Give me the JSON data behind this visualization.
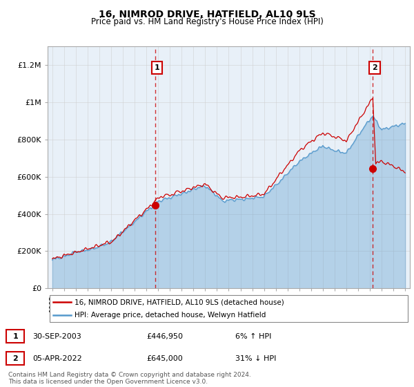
{
  "title": "16, NIMROD DRIVE, HATFIELD, AL10 9LS",
  "subtitle": "Price paid vs. HM Land Registry's House Price Index (HPI)",
  "ylabel_ticks": [
    "£0",
    "£200K",
    "£400K",
    "£600K",
    "£800K",
    "£1M",
    "£1.2M"
  ],
  "ylim": [
    0,
    1300000
  ],
  "xlim_start": 1994.6,
  "xlim_end": 2025.4,
  "price_color": "#cc0000",
  "hpi_color": "#5599cc",
  "hpi_fill_color": "#ddeeff",
  "marker1_date": 2003.75,
  "marker1_value": 446950,
  "marker1_label": "1",
  "marker2_date": 2022.25,
  "marker2_value": 645000,
  "marker2_label": "2",
  "legend_label1": "16, NIMROD DRIVE, HATFIELD, AL10 9LS (detached house)",
  "legend_label2": "HPI: Average price, detached house, Welwyn Hatfield",
  "table_row1": [
    "1",
    "30-SEP-2003",
    "£446,950",
    "6% ↑ HPI"
  ],
  "table_row2": [
    "2",
    "05-APR-2022",
    "£645,000",
    "31% ↓ HPI"
  ],
  "footer": "Contains HM Land Registry data © Crown copyright and database right 2024.\nThis data is licensed under the Open Government Licence v3.0.",
  "background_color": "#ffffff",
  "grid_color": "#cccccc",
  "chart_bg_color": "#e8f0f8"
}
